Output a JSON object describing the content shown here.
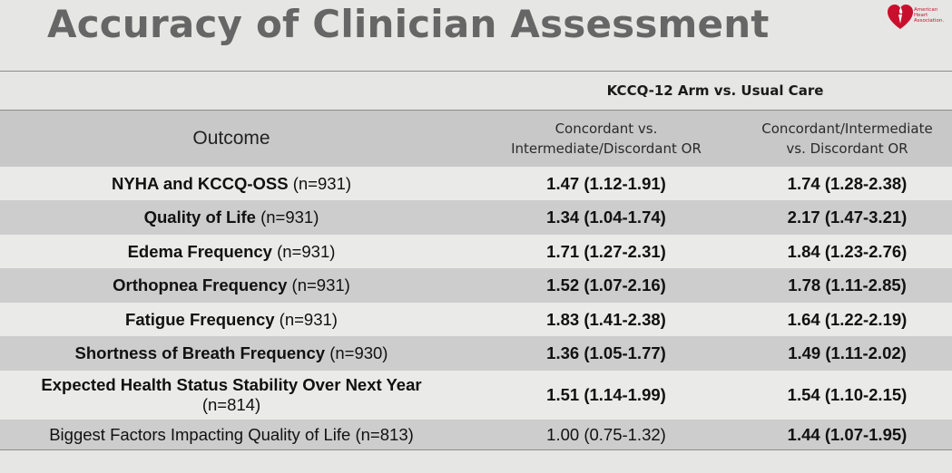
{
  "title": "Accuracy of Clinician Assessment",
  "logo": {
    "line1": "American",
    "line2": "Heart",
    "line3": "Association.",
    "color": "#c8102e"
  },
  "table": {
    "group_header": "KCCQ-12 Arm vs. Usual Care",
    "columns": {
      "outcome": "Outcome",
      "col1_line1": "Concordant vs.",
      "col1_line2": "Intermediate/Discordant OR",
      "col2_line1": "Concordant/Intermediate",
      "col2_line2": "vs. Discordant OR"
    },
    "rows": [
      {
        "label": "NYHA and KCCQ-OSS",
        "n": "(n=931)",
        "or1": "1.47 (1.12-1.91)",
        "or2": "1.74 (1.28-2.38)",
        "label_bold": true,
        "or1_bold": true,
        "or2_bold": true
      },
      {
        "label": "Quality of Life",
        "n": "(n=931)",
        "or1": "1.34 (1.04-1.74)",
        "or2": "2.17 (1.47-3.21)",
        "label_bold": true,
        "or1_bold": true,
        "or2_bold": true
      },
      {
        "label": "Edema Frequency",
        "n": "(n=931)",
        "or1": "1.71 (1.27-2.31)",
        "or2": "1.84 (1.23-2.76)",
        "label_bold": true,
        "or1_bold": true,
        "or2_bold": true
      },
      {
        "label": "Orthopnea Frequency",
        "n": "(n=931)",
        "or1": "1.52 (1.07-2.16)",
        "or2": "1.78 (1.11-2.85)",
        "label_bold": true,
        "or1_bold": true,
        "or2_bold": true
      },
      {
        "label": "Fatigue Frequency",
        "n": "(n=931)",
        "or1": "1.83 (1.41-2.38)",
        "or2": "1.64 (1.22-2.19)",
        "label_bold": true,
        "or1_bold": true,
        "or2_bold": true
      },
      {
        "label": "Shortness of Breath Frequency",
        "n": "(n=930)",
        "or1": "1.36 (1.05-1.77)",
        "or2": "1.49 (1.11-2.02)",
        "label_bold": true,
        "or1_bold": true,
        "or2_bold": true
      },
      {
        "label": "Expected Health Status Stability Over Next Year",
        "n": "(n=814)",
        "or1": "1.51 (1.14-1.99)",
        "or2": "1.54 (1.10-2.15)",
        "label_bold": true,
        "or1_bold": true,
        "or2_bold": true
      },
      {
        "label": "Biggest Factors Impacting Quality of Life",
        "n": "(n=813)",
        "or1": "1.00 (0.75-1.32)",
        "or2": "1.44 (1.07-1.95)",
        "label_bold": false,
        "or1_bold": false,
        "or2_bold": true
      }
    ]
  }
}
